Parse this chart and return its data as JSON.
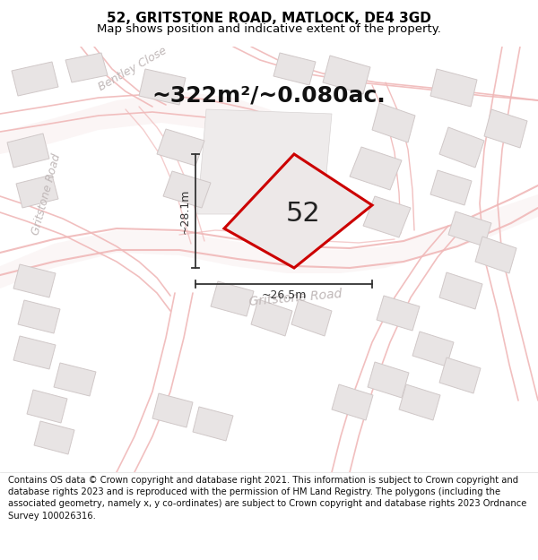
{
  "title": "52, GRITSTONE ROAD, MATLOCK, DE4 3GD",
  "subtitle": "Map shows position and indicative extent of the property.",
  "area_text": "~322m²/~0.080ac.",
  "property_number": "52",
  "dim_vertical": "~28.1m",
  "dim_horizontal": "~26.5m",
  "footer": "Contains OS data © Crown copyright and database right 2021. This information is subject to Crown copyright and database rights 2023 and is reproduced with the permission of HM Land Registry. The polygons (including the associated geometry, namely x, y co-ordinates) are subject to Crown copyright and database rights 2023 Ordnance Survey 100026316.",
  "bg_color": "#ffffff",
  "road_stroke": "#f0b8b8",
  "road_fill": "#f5e8e8",
  "building_fill": "#e8e4e4",
  "building_edge": "#d0c8c8",
  "property_fill": "#ede8e8",
  "property_edge": "#cc0000",
  "dim_color": "#333333",
  "title_color": "#000000",
  "street_label_color": "#c0b8b8",
  "figsize": [
    6.0,
    6.25
  ],
  "dpi": 100,
  "title_fontsize": 11,
  "subtitle_fontsize": 9.5,
  "area_fontsize": 18,
  "label_fontsize": 9,
  "num_fontsize": 22,
  "footer_fontsize": 7.2
}
